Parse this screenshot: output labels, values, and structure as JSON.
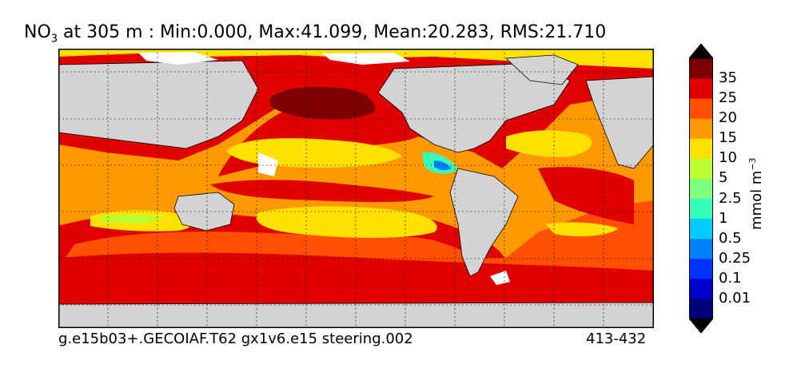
{
  "title": {
    "prefix": "NO",
    "subscript": "3",
    "rest": " at 305 m : Min:0.000, Max:41.099, Mean:20.283, RMS:21.710"
  },
  "footer": {
    "left": "g.e15b03+.GECOIAF.T62 gx1v6.e15 steering.002",
    "right": "413-432"
  },
  "colorbar": {
    "labels": [
      "35",
      "25",
      "20",
      "15",
      "10",
      "5",
      "2.5",
      "1",
      "0.5",
      "0.25",
      "0.1",
      "0.01"
    ],
    "colors": [
      "#000080",
      "#0000cd",
      "#0033ff",
      "#0080ff",
      "#00ccff",
      "#33ffbb",
      "#7dff7d",
      "#bbff33",
      "#ffe100",
      "#ff9900",
      "#ff4f00",
      "#e00000",
      "#7f0000"
    ],
    "unit_base": "mmol m",
    "unit_exp": "−3"
  },
  "map_colors": {
    "land": "#d3d3d3",
    "ice": "#ffffff",
    "grid": "#000000"
  }
}
